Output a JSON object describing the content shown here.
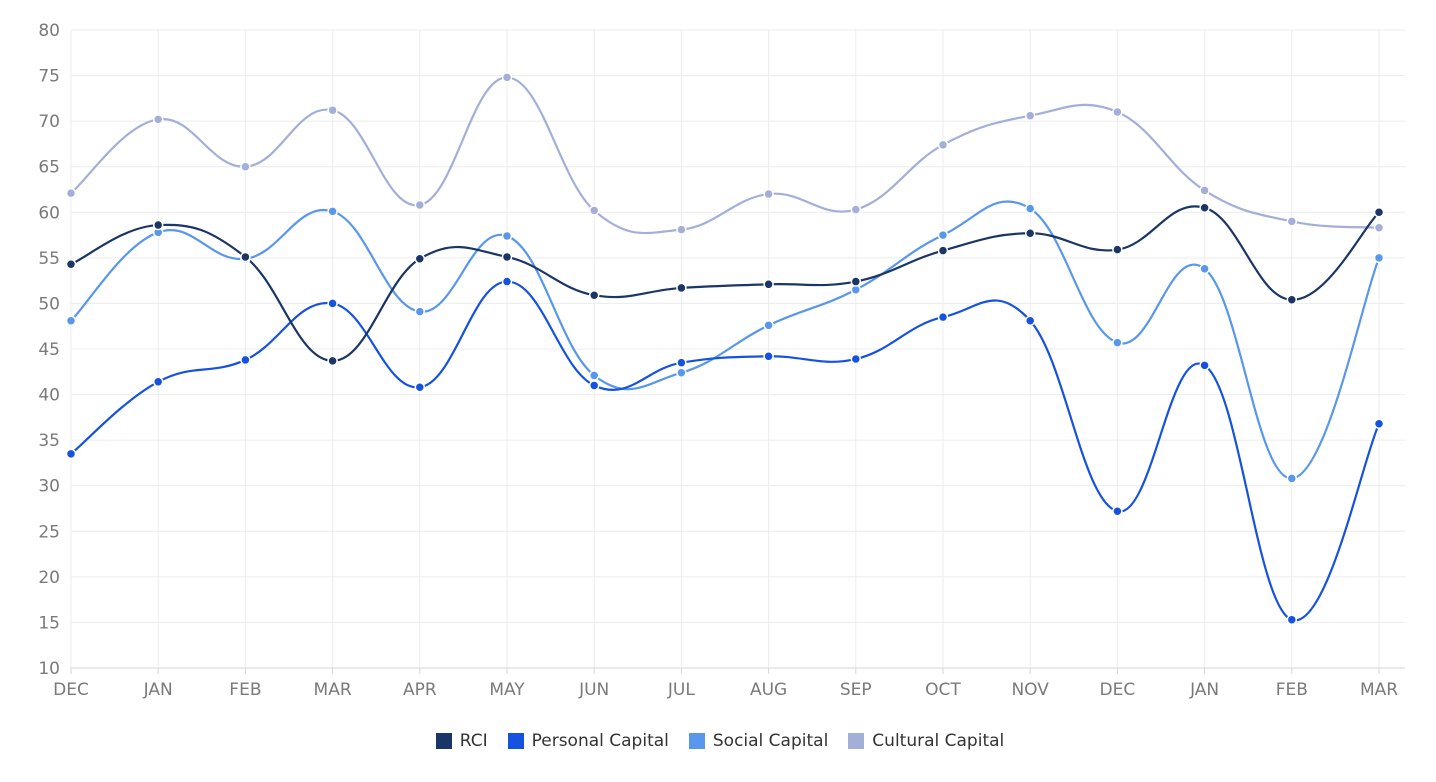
{
  "chart_data": {
    "type": "line",
    "categories": [
      "DEC",
      "JAN",
      "FEB",
      "MAR",
      "APR",
      "MAY",
      "JUN",
      "JUL",
      "AUG",
      "SEP",
      "OCT",
      "NOV",
      "DEC",
      "JAN",
      "FEB",
      "MAR"
    ],
    "ylim": [
      10,
      80
    ],
    "yticks": [
      10,
      15,
      20,
      25,
      30,
      35,
      40,
      45,
      50,
      55,
      60,
      65,
      70,
      75,
      80
    ],
    "grid": true,
    "legend_position": "bottom",
    "curve": "smooth",
    "series": [
      {
        "name": "Cultural Capital",
        "color": "#a3afd8",
        "values": [
          62.1,
          70.2,
          65.0,
          71.2,
          60.8,
          74.8,
          60.2,
          58.1,
          62.0,
          60.3,
          67.4,
          70.6,
          71.0,
          62.4,
          59.0,
          58.3
        ]
      },
      {
        "name": "Social Capital",
        "color": "#5897ec",
        "values": [
          48.1,
          57.8,
          54.9,
          60.1,
          49.1,
          57.4,
          42.1,
          42.4,
          47.6,
          51.5,
          57.5,
          60.4,
          45.7,
          53.8,
          30.8,
          55.0
        ]
      },
      {
        "name": "Personal Capital",
        "color": "#1652e0",
        "values": [
          33.5,
          41.4,
          43.8,
          50.0,
          40.8,
          52.4,
          41.0,
          43.5,
          44.2,
          43.9,
          48.5,
          48.1,
          27.2,
          43.2,
          15.3,
          36.8
        ]
      },
      {
        "name": "RCI",
        "color": "#1a3566",
        "values": [
          54.3,
          58.6,
          55.1,
          43.7,
          54.9,
          55.1,
          50.9,
          51.7,
          52.1,
          52.4,
          55.8,
          57.7,
          55.9,
          60.5,
          50.4,
          60.0
        ]
      }
    ],
    "legend_order": [
      "RCI",
      "Personal Capital",
      "Social Capital",
      "Cultural Capital"
    ]
  }
}
